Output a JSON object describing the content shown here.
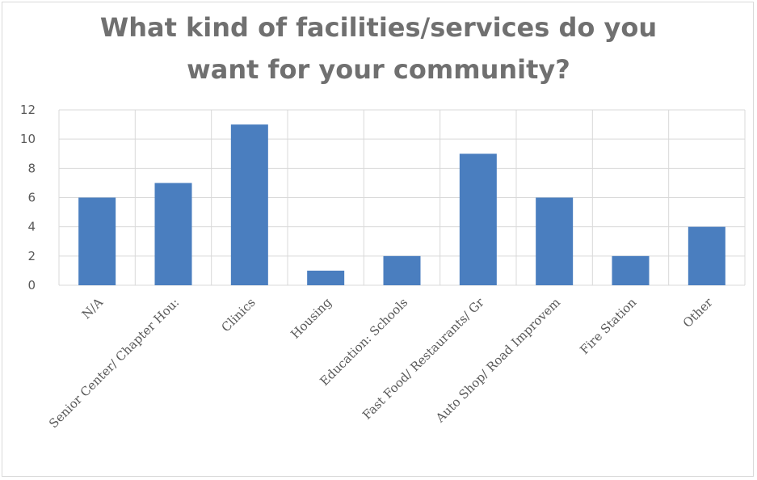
{
  "chart_data": {
    "type": "bar",
    "title": "What kind of facilities/services do you want for your community?",
    "title_lines": [
      "What kind of facilities/services do you",
      "want for your community?"
    ],
    "categories": [
      "N/A",
      "Senior Center/ Chapter Hou:",
      "Clinics",
      "Housing",
      "Education: Schools",
      "Fast Food/ Restaurants/ Gr",
      "Auto Shop/ Road Improvem",
      "Fire Station",
      "Other"
    ],
    "values": [
      6,
      7,
      11,
      1,
      2,
      9,
      6,
      2,
      4
    ],
    "ylim": [
      0,
      12
    ],
    "yticks": [
      0,
      2,
      4,
      6,
      8,
      10,
      12
    ],
    "xlabel": "",
    "ylabel": "",
    "grid": true,
    "bar_color": "#4a7ebf",
    "grid_color": "#d9d9d9"
  }
}
